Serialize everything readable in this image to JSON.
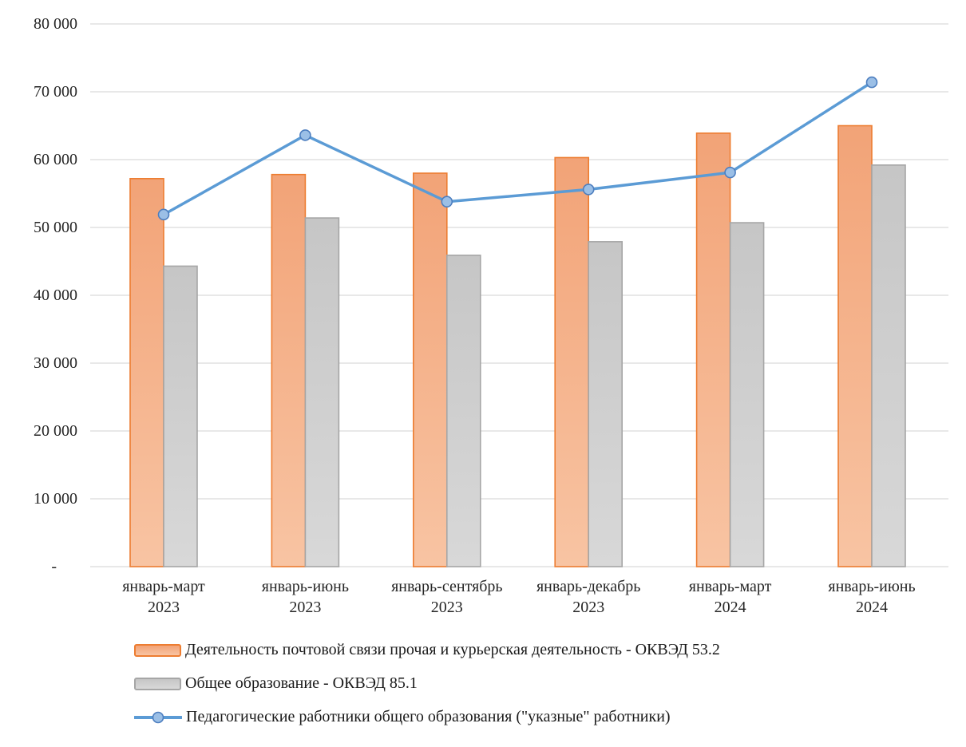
{
  "chart_data": {
    "type": "bar",
    "subtype": "grouped-bars-with-line-overlay",
    "title": "",
    "xlabel": "",
    "ylabel": "",
    "categories": [
      {
        "period": "январь-март",
        "year": "2023"
      },
      {
        "period": "январь-июнь",
        "year": "2023"
      },
      {
        "period": "январь-сентябрь",
        "year": "2023"
      },
      {
        "period": "январь-декабрь",
        "year": "2023"
      },
      {
        "period": "январь-март",
        "year": "2024"
      },
      {
        "period": "январь-июнь",
        "year": "2024"
      }
    ],
    "series": [
      {
        "name": "Деятельность почтовой связи прочая и курьерская деятельность - ОКВЭД 53.2",
        "type": "bar",
        "values": [
          57200,
          57800,
          58000,
          60300,
          63900,
          65000
        ],
        "fill_top": "#f2a377",
        "fill_bottom": "#f8c4a3",
        "border": "#ed7d31"
      },
      {
        "name": "Общее образование - ОКВЭД 85.1",
        "type": "bar",
        "values": [
          44300,
          51400,
          45900,
          47900,
          50700,
          59200
        ],
        "fill_top": "#c6c6c6",
        "fill_bottom": "#d8d8d8",
        "border": "#a6a6a6"
      },
      {
        "name": "Педагогические работники общего образования (\"указные\" работники)",
        "type": "line",
        "values": [
          51900,
          63600,
          53800,
          55600,
          58100,
          71400
        ],
        "line_color": "#5b9bd5",
        "marker_fill": "#9bbfe6",
        "marker_border": "#4d7ebf"
      }
    ],
    "y_axis": {
      "min": 0,
      "max": 80000,
      "step": 10000,
      "tick_labels": [
        "-",
        "10 000",
        "20 000",
        "30 000",
        "40 000",
        "50 000",
        "60 000",
        "70 000",
        "80 000"
      ]
    },
    "grid": "horizontal",
    "gridline_color": "#d9d9d9",
    "legend_position": "bottom-left"
  }
}
